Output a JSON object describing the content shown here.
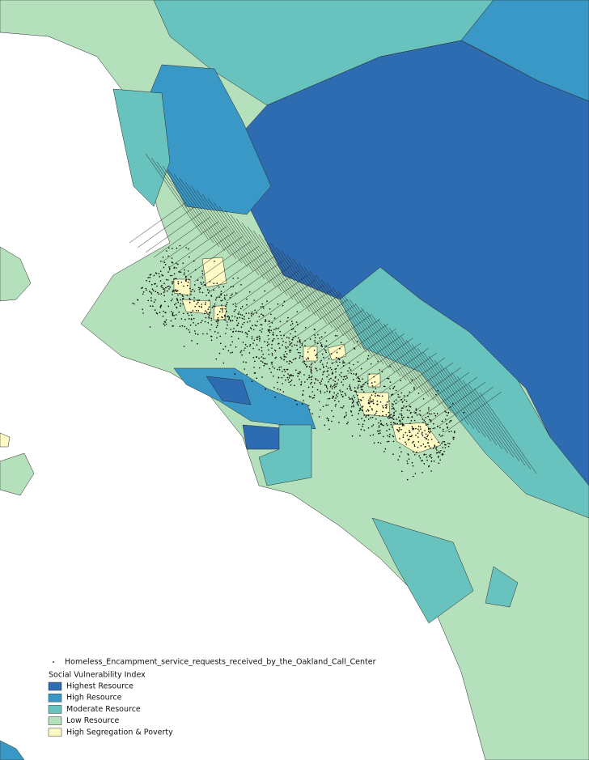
{
  "legend": {
    "point_layer": "Homeless_Encampment_service_requests_received_by_the_Oakland_Call_Center",
    "title": "Social Vulnerability Index",
    "entries": [
      {
        "label": "Highest Resource",
        "color": "#2d6cb0"
      },
      {
        "label": "High Resource",
        "color": "#3a98c6"
      },
      {
        "label": "Moderate Resource",
        "color": "#68c3bf"
      },
      {
        "label": "Low Resource",
        "color": "#b4e0bb"
      },
      {
        "label": "High Segregation & Poverty",
        "color": "#fdfac4"
      }
    ]
  }
}
